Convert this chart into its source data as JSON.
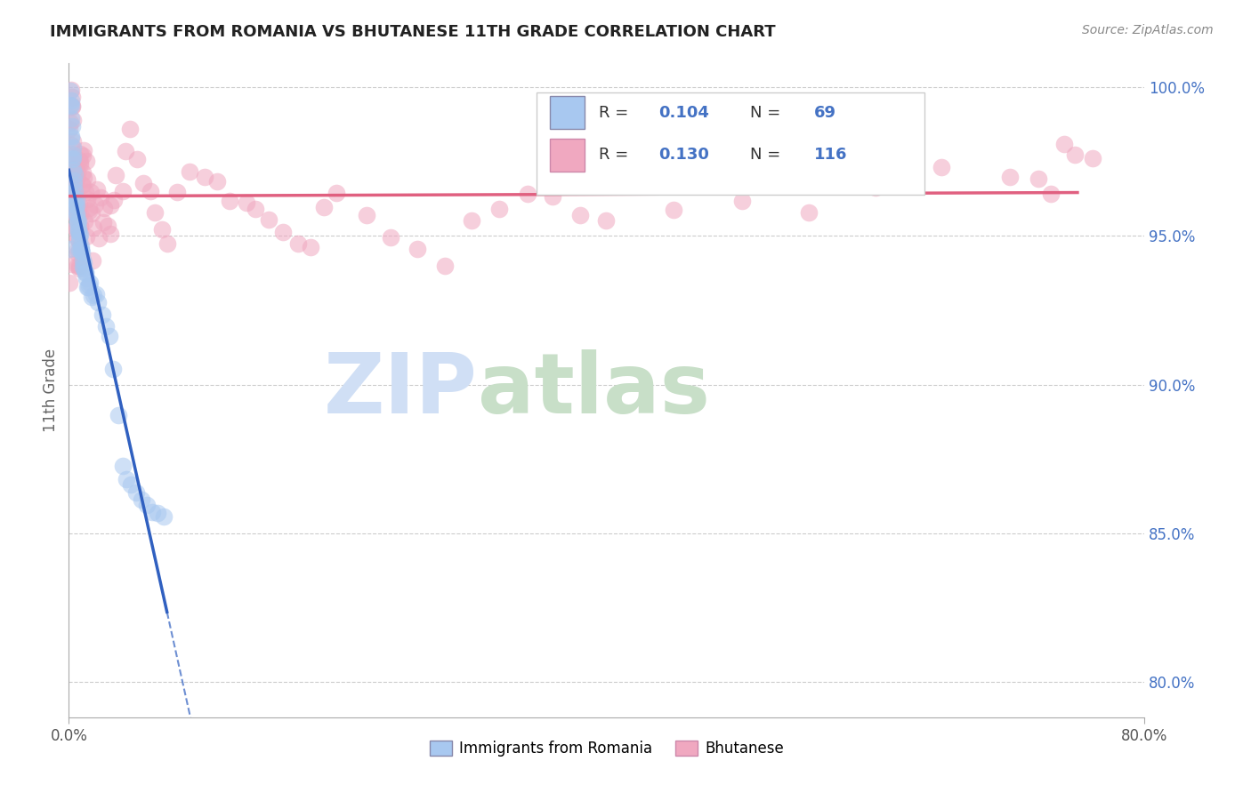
{
  "title": "IMMIGRANTS FROM ROMANIA VS BHUTANESE 11TH GRADE CORRELATION CHART",
  "source": "Source: ZipAtlas.com",
  "ylabel": "11th Grade",
  "legend_r1": "0.104",
  "legend_n1": "69",
  "legend_r2": "0.130",
  "legend_n2": "116",
  "color_romania": "#a8c8f0",
  "color_bhutanese": "#f0a8c0",
  "color_blue_line": "#3060c0",
  "color_pink_line": "#e06080",
  "color_text_blue": "#4472c4",
  "watermark_zip_color": "#d0dff5",
  "watermark_atlas_color": "#c8dfc8",
  "ytick_right": [
    1.0,
    0.95,
    0.9,
    0.85,
    0.8
  ],
  "ytick_right_labels": [
    "100.0%",
    "95.0%",
    "90.0%",
    "85.0%",
    "80.0%"
  ],
  "xlim": [
    0.0,
    0.8
  ],
  "ylim": [
    0.788,
    1.008
  ],
  "rom_x": [
    0.001,
    0.001,
    0.001,
    0.002,
    0.002,
    0.002,
    0.002,
    0.002,
    0.003,
    0.003,
    0.003,
    0.003,
    0.003,
    0.004,
    0.004,
    0.004,
    0.004,
    0.005,
    0.005,
    0.005,
    0.005,
    0.006,
    0.006,
    0.006,
    0.006,
    0.006,
    0.007,
    0.007,
    0.007,
    0.007,
    0.008,
    0.008,
    0.008,
    0.008,
    0.009,
    0.009,
    0.009,
    0.01,
    0.01,
    0.01,
    0.011,
    0.011,
    0.012,
    0.012,
    0.013,
    0.013,
    0.014,
    0.015,
    0.016,
    0.017,
    0.018,
    0.02,
    0.022,
    0.025,
    0.028,
    0.03,
    0.033,
    0.036,
    0.04,
    0.043,
    0.046,
    0.05,
    0.054,
    0.058,
    0.062,
    0.066,
    0.07,
    0.001,
    0.001
  ],
  "rom_y": [
    0.998,
    0.996,
    0.994,
    0.992,
    0.99,
    0.988,
    0.985,
    0.982,
    0.98,
    0.978,
    0.976,
    0.974,
    0.972,
    0.97,
    0.968,
    0.966,
    0.964,
    0.963,
    0.962,
    0.961,
    0.96,
    0.959,
    0.958,
    0.957,
    0.956,
    0.955,
    0.954,
    0.953,
    0.952,
    0.951,
    0.95,
    0.949,
    0.948,
    0.947,
    0.946,
    0.945,
    0.944,
    0.943,
    0.942,
    0.941,
    0.94,
    0.939,
    0.938,
    0.937,
    0.936,
    0.935,
    0.934,
    0.933,
    0.932,
    0.931,
    0.93,
    0.929,
    0.927,
    0.924,
    0.921,
    0.918,
    0.906,
    0.89,
    0.875,
    0.87,
    0.866,
    0.864,
    0.862,
    0.86,
    0.858,
    0.856,
    0.854,
    0.962,
    0.945
  ],
  "bhu_x": [
    0.001,
    0.001,
    0.001,
    0.001,
    0.002,
    0.002,
    0.002,
    0.002,
    0.002,
    0.003,
    0.003,
    0.003,
    0.003,
    0.003,
    0.004,
    0.004,
    0.004,
    0.004,
    0.005,
    0.005,
    0.005,
    0.005,
    0.006,
    0.006,
    0.006,
    0.006,
    0.007,
    0.007,
    0.007,
    0.007,
    0.008,
    0.008,
    0.008,
    0.009,
    0.009,
    0.009,
    0.01,
    0.01,
    0.011,
    0.011,
    0.012,
    0.012,
    0.013,
    0.013,
    0.014,
    0.015,
    0.016,
    0.017,
    0.018,
    0.02,
    0.022,
    0.024,
    0.026,
    0.028,
    0.03,
    0.033,
    0.036,
    0.039,
    0.042,
    0.046,
    0.05,
    0.055,
    0.06,
    0.065,
    0.07,
    0.075,
    0.08,
    0.09,
    0.1,
    0.11,
    0.12,
    0.13,
    0.14,
    0.15,
    0.16,
    0.17,
    0.18,
    0.19,
    0.2,
    0.22,
    0.24,
    0.26,
    0.28,
    0.3,
    0.32,
    0.34,
    0.36,
    0.38,
    0.4,
    0.45,
    0.5,
    0.55,
    0.6,
    0.65,
    0.7,
    0.72,
    0.73,
    0.74,
    0.75,
    0.76,
    0.002,
    0.003,
    0.004,
    0.005,
    0.006,
    0.007,
    0.008,
    0.009,
    0.01,
    0.012,
    0.014,
    0.016,
    0.018,
    0.021,
    0.025,
    0.03
  ],
  "bhu_y": [
    0.998,
    0.996,
    0.994,
    0.992,
    0.99,
    0.988,
    0.985,
    0.982,
    0.98,
    0.978,
    0.976,
    0.974,
    0.972,
    0.97,
    0.968,
    0.966,
    0.964,
    0.962,
    0.96,
    0.958,
    0.956,
    0.954,
    0.952,
    0.95,
    0.948,
    0.946,
    0.944,
    0.942,
    0.94,
    0.938,
    0.962,
    0.958,
    0.954,
    0.974,
    0.97,
    0.966,
    0.978,
    0.972,
    0.98,
    0.976,
    0.974,
    0.97,
    0.968,
    0.965,
    0.962,
    0.96,
    0.958,
    0.955,
    0.952,
    0.96,
    0.966,
    0.962,
    0.958,
    0.955,
    0.952,
    0.96,
    0.97,
    0.965,
    0.978,
    0.985,
    0.975,
    0.968,
    0.963,
    0.958,
    0.953,
    0.948,
    0.965,
    0.972,
    0.97,
    0.968,
    0.965,
    0.962,
    0.958,
    0.955,
    0.952,
    0.948,
    0.945,
    0.96,
    0.965,
    0.955,
    0.95,
    0.945,
    0.94,
    0.955,
    0.96,
    0.965,
    0.962,
    0.958,
    0.955,
    0.96,
    0.962,
    0.958,
    0.968,
    0.972,
    0.97,
    0.968,
    0.965,
    0.98,
    0.975,
    0.976,
    0.935,
    0.94,
    0.96,
    0.968,
    0.97,
    0.972,
    0.975,
    0.978,
    0.958,
    0.954,
    0.95,
    0.962,
    0.942,
    0.95,
    0.955,
    0.96
  ]
}
